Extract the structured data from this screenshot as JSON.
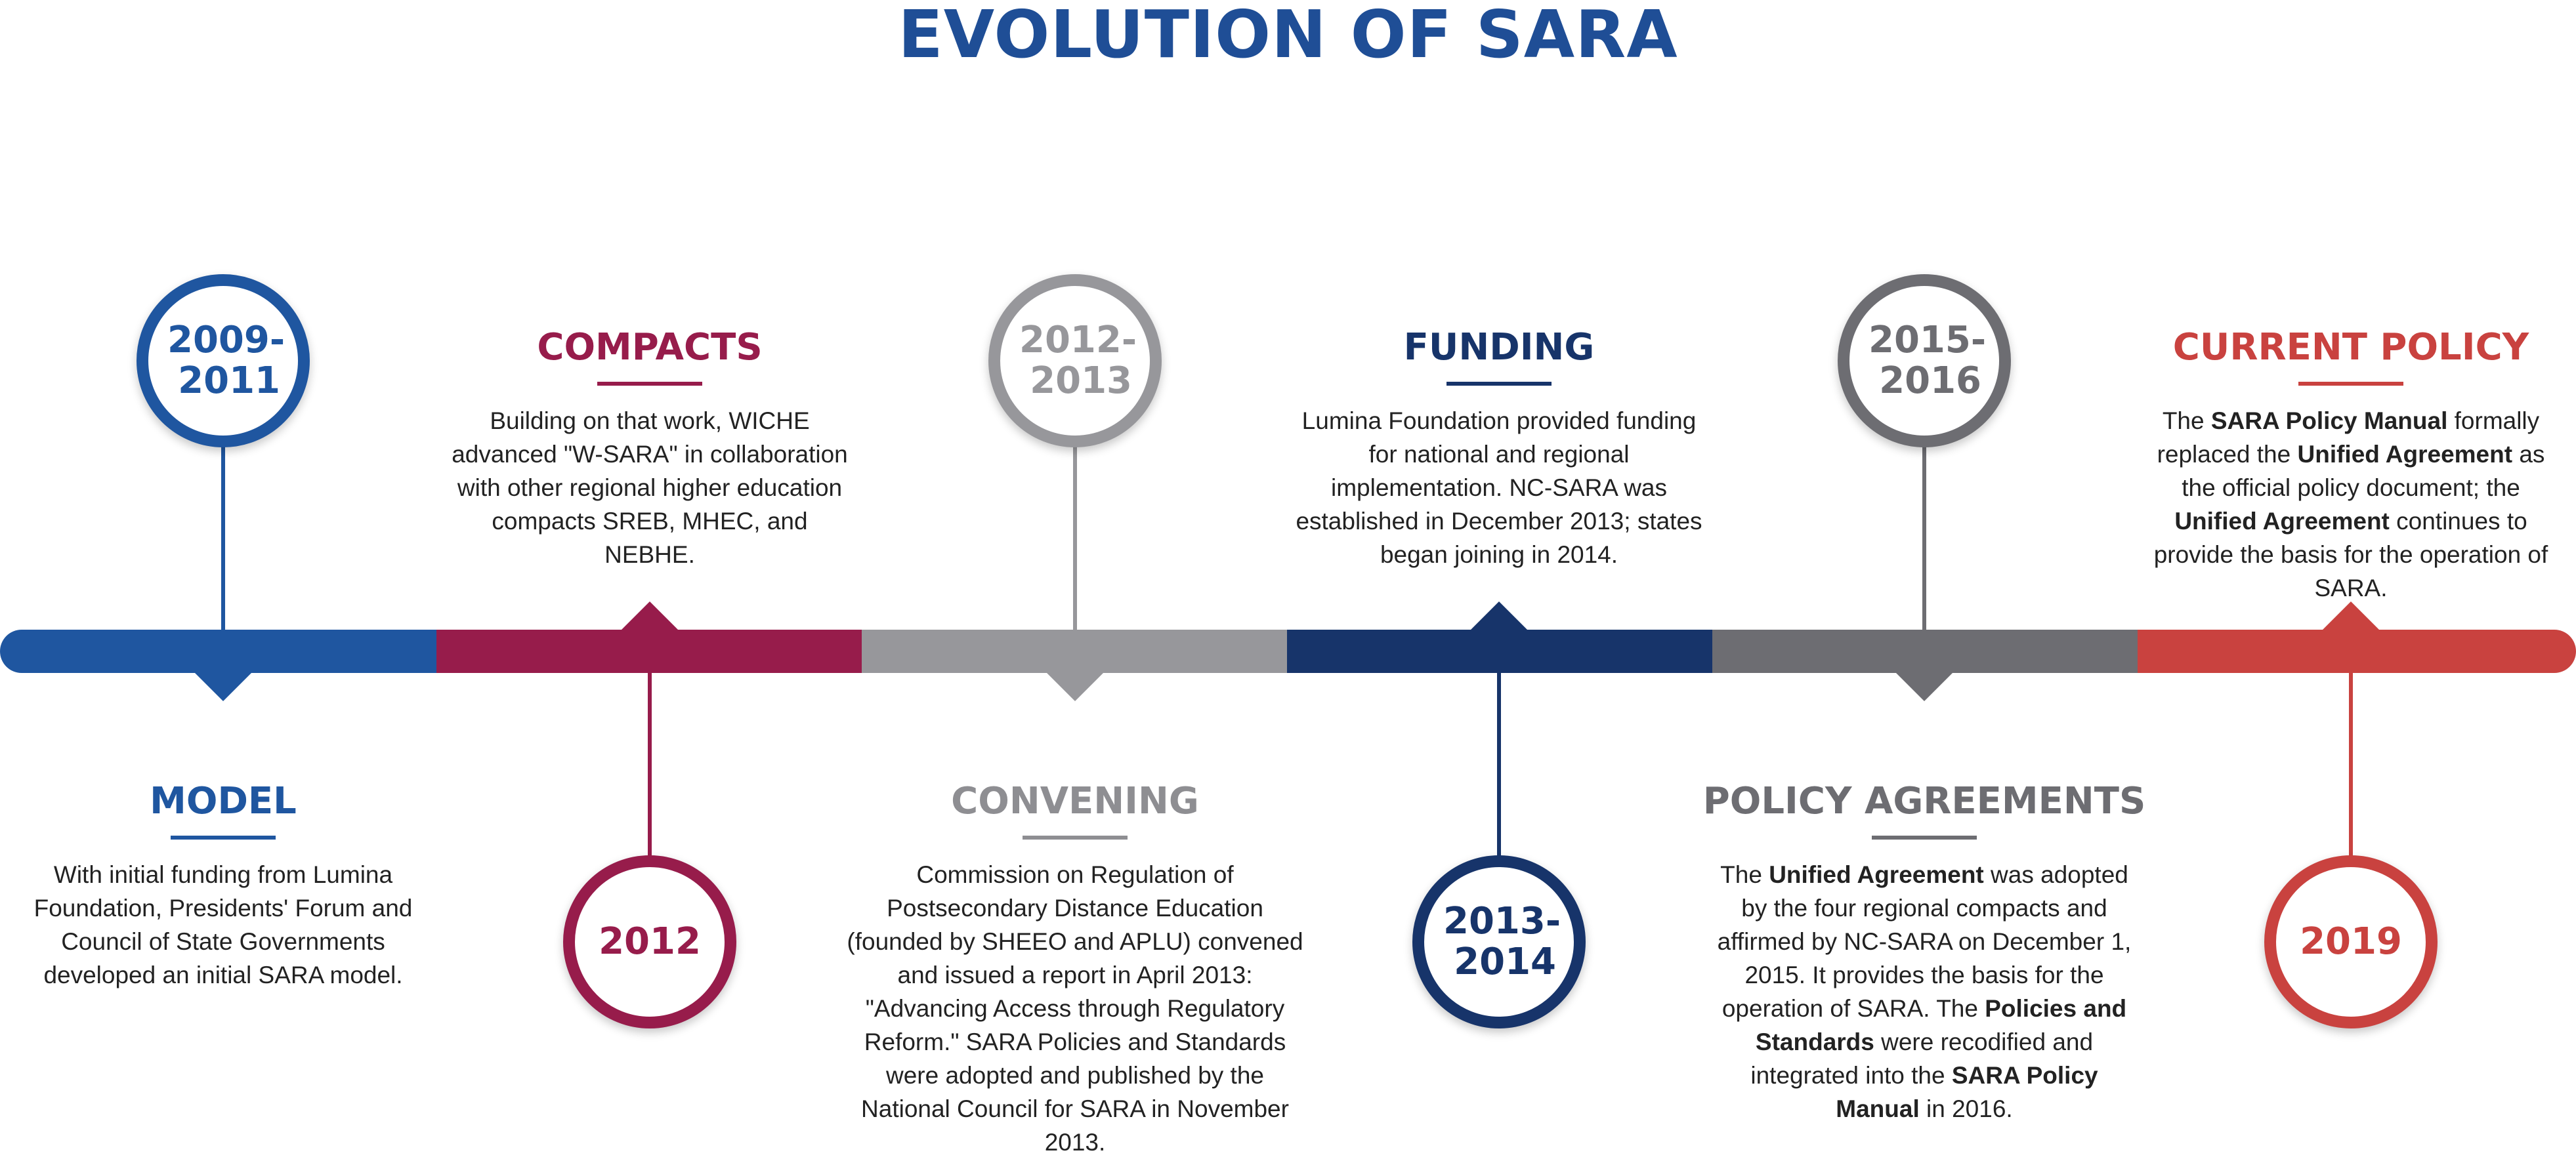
{
  "title": "EVOLUTION OF SARA",
  "colors": {
    "blue": "#1f56a0",
    "maroon": "#971c4b",
    "lightgray": "#97979b",
    "navy": "#17346a",
    "darkgray": "#6d6d72",
    "red": "#c9423f"
  },
  "stages": [
    {
      "year_lines": [
        "2009-",
        "2011"
      ],
      "heading": "MODEL",
      "description": [
        {
          "t": "With initial funding from Lumina Foundation, Presidents' Forum and Council of State Governments developed an initial SARA model."
        }
      ]
    },
    {
      "year_lines": [
        "2012"
      ],
      "heading": "COMPACTS",
      "description": [
        {
          "t": "Building on that work, WICHE advanced \"W-SARA\" in collaboration with other regional higher education compacts SREB, MHEC, and NEBHE."
        }
      ]
    },
    {
      "year_lines": [
        "2012-",
        "2013"
      ],
      "heading": "CONVENING",
      "description": [
        {
          "t": "Commission on Regulation of Postsecondary Distance Education (founded by SHEEO and APLU) convened and issued a report in April 2013: \"Advancing Access through Regulatory Reform.\" SARA Policies and Standards were adopted and published by the National Council for SARA in November 2013."
        }
      ]
    },
    {
      "year_lines": [
        "2013-",
        "2014"
      ],
      "heading": "FUNDING",
      "description": [
        {
          "t": "Lumina Foundation provided funding for national and regional implementation. NC-SARA was established in December 2013; states began joining in 2014."
        }
      ]
    },
    {
      "year_lines": [
        "2015-",
        "2016"
      ],
      "heading": "POLICY AGREEMENTS",
      "description": [
        {
          "t": "The "
        },
        {
          "t": "Unified Agreement",
          "b": true
        },
        {
          "t": " was adopted by the four regional compacts and affirmed by NC-SARA on December 1, 2015. It provides the basis for the operation of SARA. The "
        },
        {
          "t": "Policies and Standards",
          "b": true
        },
        {
          "t": " were recodified and integrated into the "
        },
        {
          "t": "SARA Policy Manual",
          "b": true
        },
        {
          "t": " in 2016."
        }
      ]
    },
    {
      "year_lines": [
        "2019"
      ],
      "heading": "CURRENT POLICY",
      "description": [
        {
          "t": "The "
        },
        {
          "t": "SARA Policy Manual",
          "b": true
        },
        {
          "t": " formally replaced the "
        },
        {
          "t": "Unified Agreement",
          "b": true
        },
        {
          "t": " as the official policy document; the "
        },
        {
          "t": "Unified Agreement",
          "b": true
        },
        {
          "t": " continues to provide the basis for the operation of SARA."
        }
      ]
    }
  ]
}
